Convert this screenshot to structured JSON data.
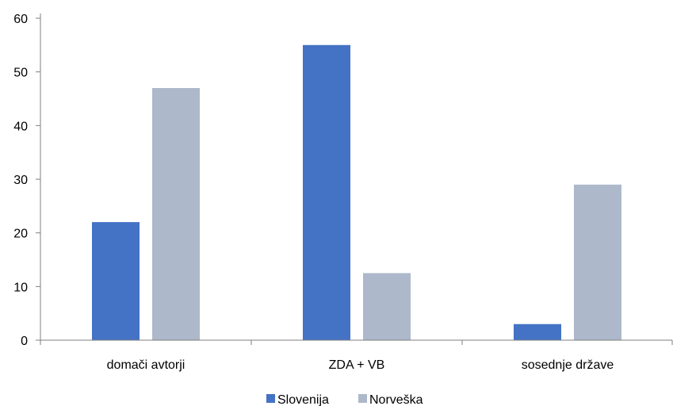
{
  "chart_data": {
    "type": "bar",
    "categories": [
      "domači avtorji",
      "ZDA + VB",
      "sosednje države"
    ],
    "series": [
      {
        "name": "Slovenija",
        "values": [
          22,
          55,
          3
        ],
        "color": "#4472C4"
      },
      {
        "name": "Norveška",
        "values": [
          47,
          12.5,
          29
        ],
        "color": "#ADB9CA"
      }
    ],
    "ylim": [
      0,
      60
    ],
    "yticks": [
      "0",
      "10",
      "20",
      "30",
      "40",
      "50",
      "60"
    ],
    "grid": false,
    "legend": "bottom"
  }
}
